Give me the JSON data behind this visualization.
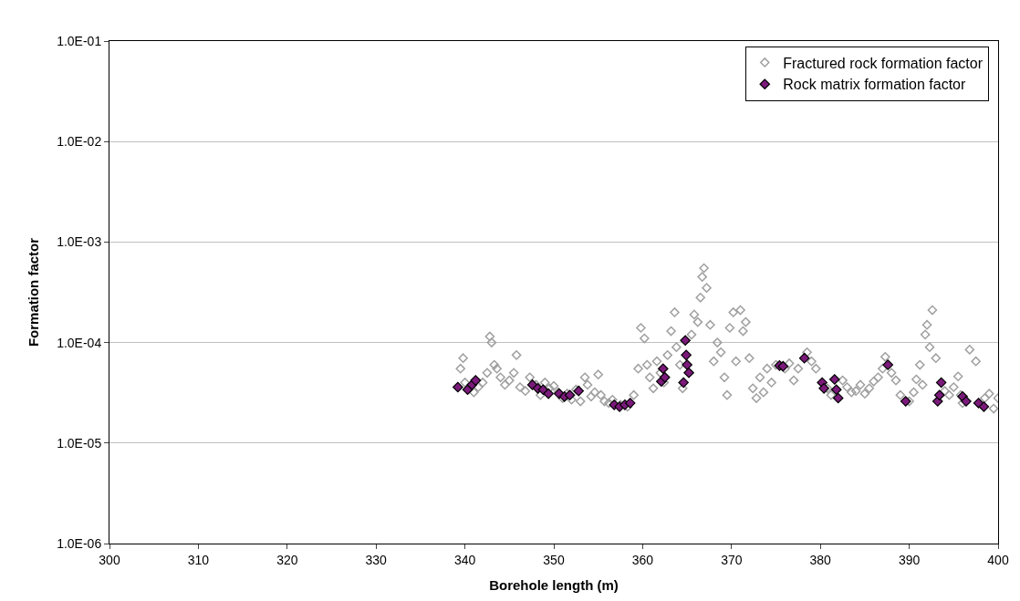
{
  "chart_data": {
    "type": "scatter",
    "xlabel": "Borehole length (m)",
    "ylabel": "Formation factor",
    "log": "y",
    "xlim": [
      300,
      400
    ],
    "xticks": [
      300,
      310,
      320,
      330,
      340,
      350,
      360,
      370,
      380,
      390,
      400
    ],
    "ylim": [
      1e-06,
      0.1
    ],
    "yticks": [
      {
        "value": 1e-06,
        "label": "1.0E-06"
      },
      {
        "value": 1e-05,
        "label": "1.0E-05"
      },
      {
        "value": 0.0001,
        "label": "1.0E-04"
      },
      {
        "value": 0.001,
        "label": "1.0E-03"
      },
      {
        "value": 0.01,
        "label": "1.0E-02"
      },
      {
        "value": 0.1,
        "label": "1.0E-01"
      }
    ],
    "grid": "y",
    "legend": "top right",
    "marker": "diamond",
    "series": [
      {
        "name": "Fractured rock formation factor",
        "color": "#a0a0a0",
        "x": [
          339.5,
          339.8,
          340.0,
          340.5,
          341.0,
          341.5,
          342.0,
          342.5,
          342.8,
          343.0,
          343.3,
          343.6,
          344.0,
          344.5,
          345.0,
          345.5,
          345.8,
          346.2,
          346.8,
          347.3,
          348.0,
          348.5,
          349.0,
          349.5,
          350.0,
          350.5,
          351.0,
          351.5,
          352.0,
          352.5,
          353.0,
          353.5,
          353.8,
          354.2,
          354.6,
          355.0,
          355.3,
          355.7,
          356.2,
          356.6,
          357.5,
          358.3,
          359.0,
          359.5,
          359.8,
          360.2,
          360.5,
          360.8,
          361.2,
          361.6,
          362.0,
          362.4,
          362.8,
          363.2,
          363.6,
          363.8,
          364.2,
          364.5,
          365.5,
          365.8,
          366.2,
          366.5,
          366.7,
          366.9,
          367.2,
          367.6,
          368.0,
          368.4,
          368.8,
          369.2,
          369.5,
          369.8,
          370.2,
          370.5,
          371.0,
          371.3,
          371.6,
          372.0,
          372.4,
          372.8,
          373.2,
          373.6,
          374.0,
          374.5,
          375.0,
          376.0,
          376.5,
          377.0,
          377.5,
          378.5,
          379.0,
          379.5,
          380.8,
          381.2,
          382.5,
          383.0,
          383.5,
          384.0,
          384.5,
          385.0,
          385.5,
          386.0,
          386.5,
          387.0,
          387.3,
          388.0,
          388.5,
          389.0,
          390.0,
          390.5,
          390.8,
          391.2,
          391.5,
          391.8,
          392.0,
          392.3,
          392.6,
          393.0,
          394.0,
          394.5,
          395.0,
          395.5,
          395.8,
          396.0,
          396.8,
          397.5,
          398.5,
          399.0,
          399.5,
          400.0
        ],
        "values": [
          5.5e-05,
          7e-05,
          4e-05,
          3.5e-05,
          3.2e-05,
          3.6e-05,
          4e-05,
          5e-05,
          0.000115,
          0.0001,
          6e-05,
          5.5e-05,
          4.5e-05,
          3.8e-05,
          4.2e-05,
          5e-05,
          7.5e-05,
          3.6e-05,
          3.3e-05,
          4.5e-05,
          3.8e-05,
          3e-05,
          4e-05,
          3.5e-05,
          3.7e-05,
          3.2e-05,
          2.8e-05,
          3.1e-05,
          2.7e-05,
          3.4e-05,
          2.6e-05,
          4.5e-05,
          3.8e-05,
          2.9e-05,
          3.2e-05,
          4.8e-05,
          3e-05,
          2.6e-05,
          2.5e-05,
          2.7e-05,
          2.4e-05,
          2.3e-05,
          3e-05,
          5.5e-05,
          0.00014,
          0.00011,
          6e-05,
          4.5e-05,
          3.5e-05,
          6.5e-05,
          5e-05,
          4e-05,
          7.5e-05,
          0.00013,
          0.0002,
          9e-05,
          6e-05,
          3.5e-05,
          0.00012,
          0.00019,
          0.00016,
          0.00028,
          0.00045,
          0.00055,
          0.00035,
          0.00015,
          6.5e-05,
          0.0001,
          8e-05,
          4.5e-05,
          3e-05,
          0.00014,
          0.0002,
          6.5e-05,
          0.00021,
          0.00013,
          0.00016,
          7e-05,
          3.5e-05,
          2.8e-05,
          4.5e-05,
          3.2e-05,
          5.5e-05,
          4e-05,
          6e-05,
          5.5e-05,
          6.2e-05,
          4.2e-05,
          5.5e-05,
          8e-05,
          6.5e-05,
          5.5e-05,
          3.5e-05,
          3e-05,
          4.2e-05,
          3.6e-05,
          3.2e-05,
          3.3e-05,
          3.8e-05,
          3.1e-05,
          3.5e-05,
          4.1e-05,
          4.5e-05,
          5.5e-05,
          7.2e-05,
          5e-05,
          4.2e-05,
          3e-05,
          2.6e-05,
          3.2e-05,
          4.3e-05,
          6e-05,
          3.8e-05,
          0.00012,
          0.00015,
          9e-05,
          0.00021,
          7e-05,
          3.3e-05,
          3e-05,
          3.6e-05,
          4.6e-05,
          3e-05,
          2.5e-05,
          8.5e-05,
          6.5e-05,
          2.8e-05,
          3.1e-05,
          2.2e-05,
          2.8e-05
        ]
      },
      {
        "name": "Rock matrix formation factor",
        "color": "#7b1a7b",
        "x": [
          339.2,
          340.3,
          340.8,
          341.2,
          347.6,
          348.2,
          348.8,
          349.4,
          350.6,
          351.2,
          351.8,
          352.8,
          356.8,
          357.4,
          358.0,
          358.6,
          362.1,
          362.3,
          362.5,
          364.6,
          364.8,
          364.9,
          365.0,
          365.2,
          375.4,
          375.8,
          378.2,
          380.2,
          380.4,
          381.6,
          381.8,
          382.0,
          387.6,
          389.6,
          393.2,
          393.4,
          393.6,
          396.0,
          396.4,
          397.8,
          398.4
        ],
        "values": [
          3.6e-05,
          3.4e-05,
          3.8e-05,
          4.2e-05,
          3.8e-05,
          3.5e-05,
          3.4e-05,
          3.1e-05,
          3.1e-05,
          2.9e-05,
          3e-05,
          3.3e-05,
          2.4e-05,
          2.3e-05,
          2.4e-05,
          2.5e-05,
          4.1e-05,
          5.5e-05,
          4.5e-05,
          4e-05,
          0.000105,
          7.5e-05,
          6e-05,
          5e-05,
          5.9e-05,
          5.8e-05,
          7e-05,
          4e-05,
          3.5e-05,
          4.3e-05,
          3.4e-05,
          2.8e-05,
          6e-05,
          2.6e-05,
          2.6e-05,
          3e-05,
          4e-05,
          2.9e-05,
          2.6e-05,
          2.5e-05,
          2.3e-05
        ]
      }
    ]
  }
}
